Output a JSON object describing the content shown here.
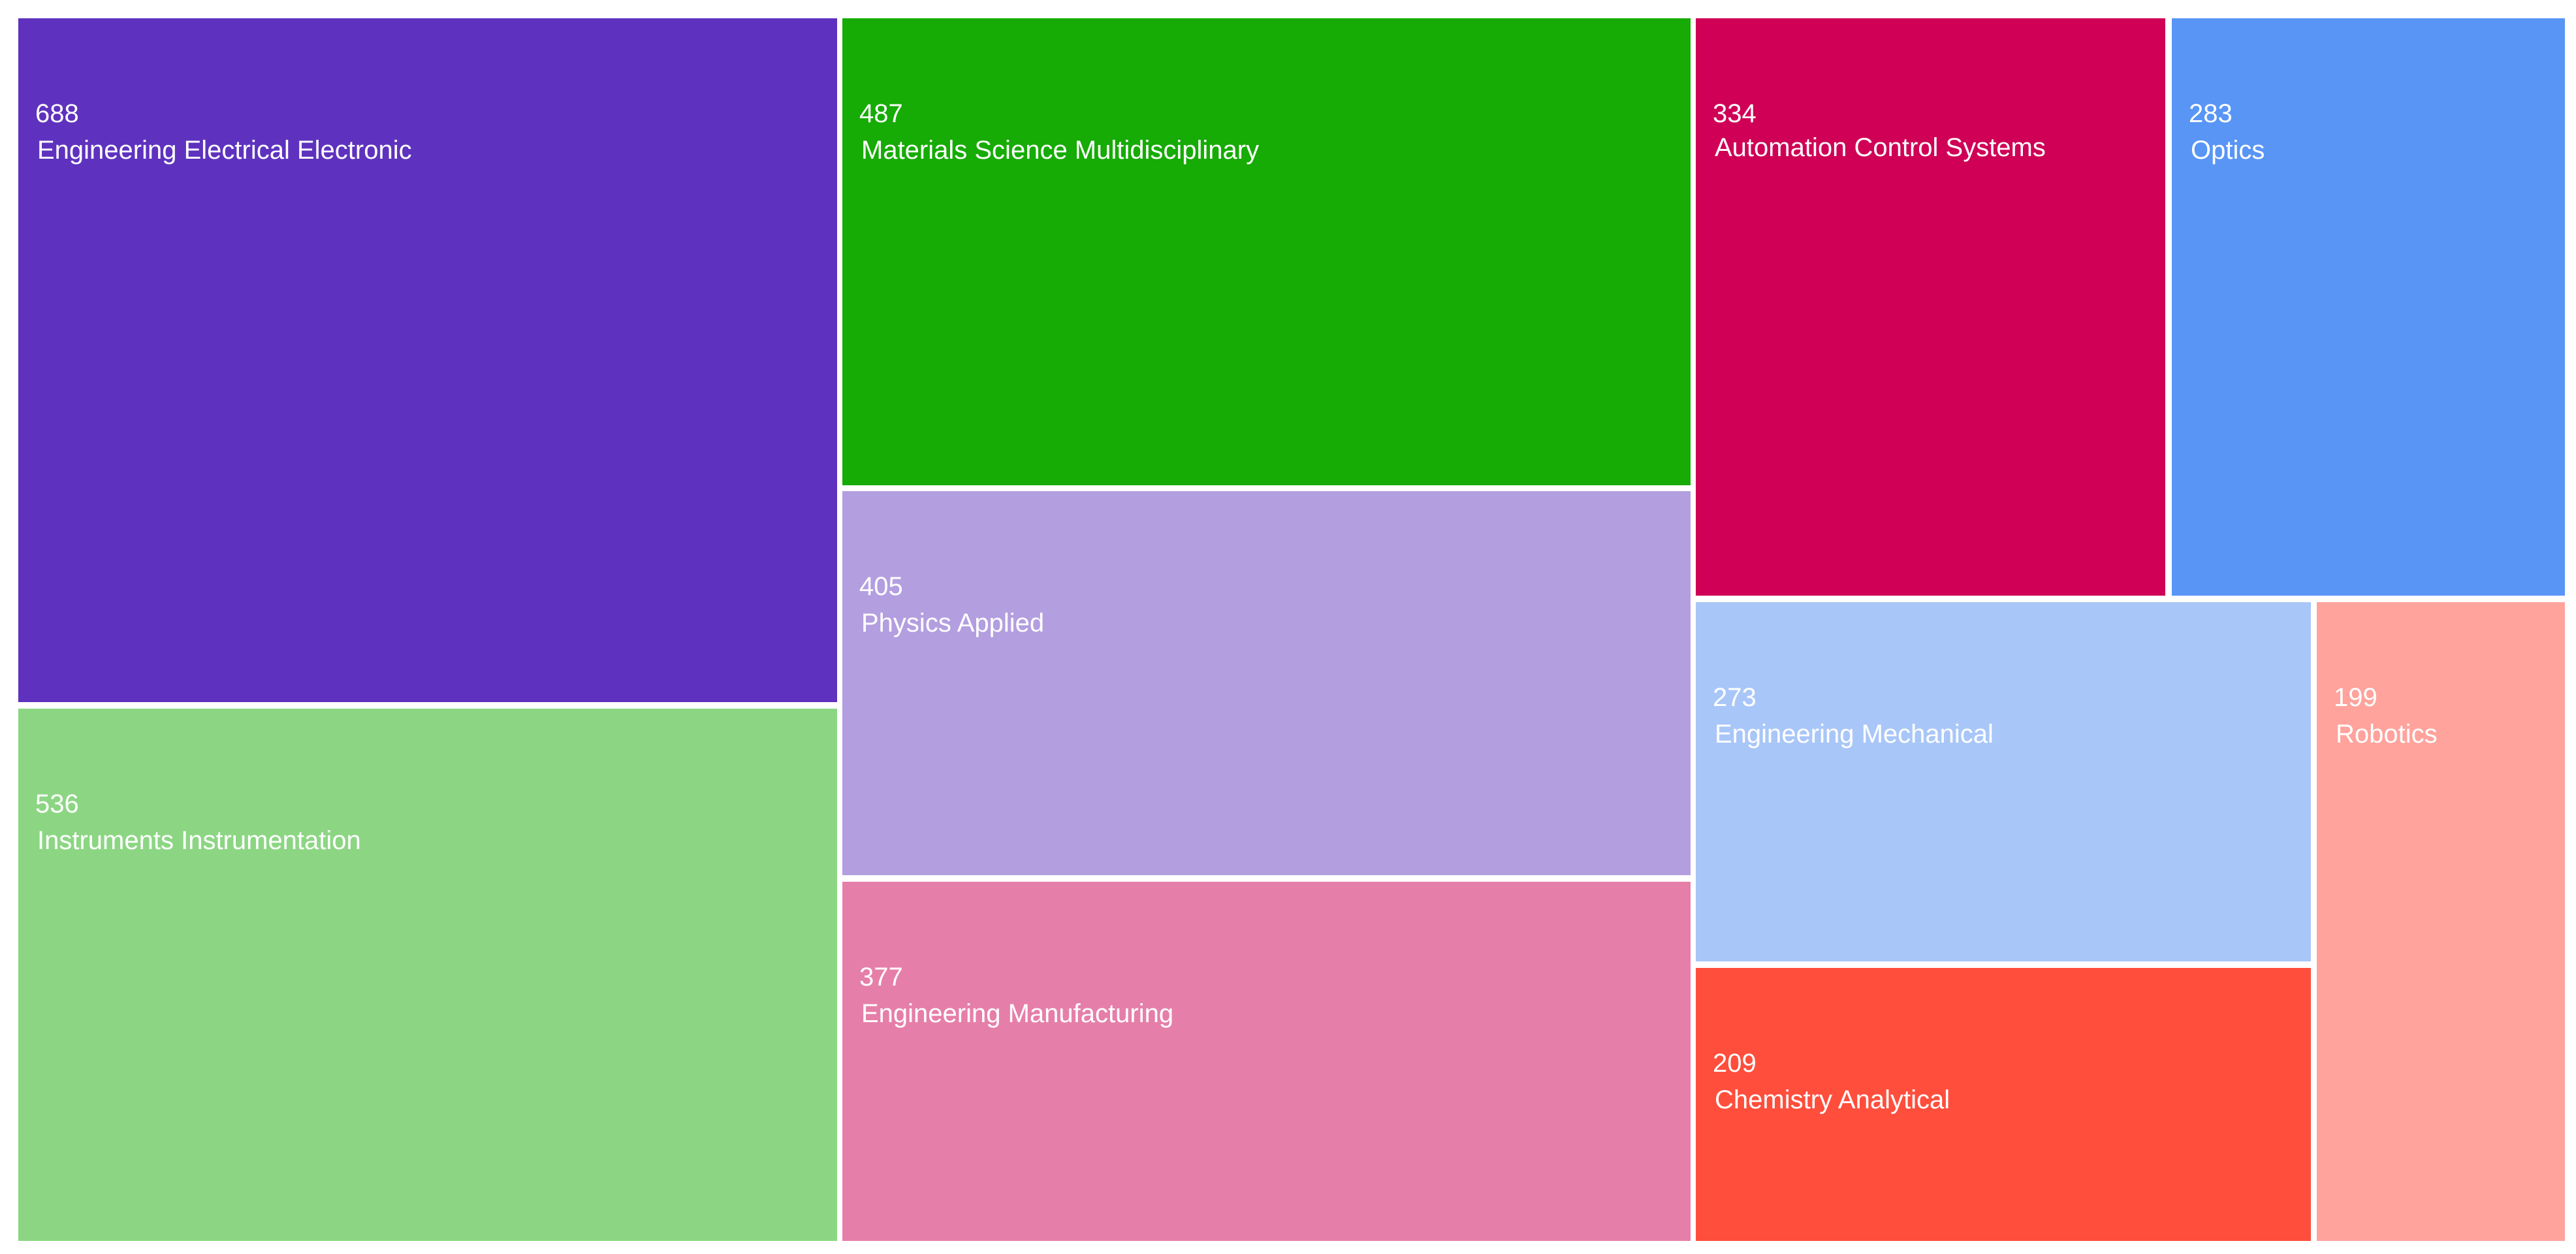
{
  "chart_data": {
    "type": "treemap",
    "title": "",
    "items": [
      {
        "label": "Engineering Electrical Electronic",
        "value": 688,
        "color": "#5e32be"
      },
      {
        "label": "Instruments Instrumentation",
        "value": 536,
        "color": "#8cd683"
      },
      {
        "label": "Materials Science Multidisciplinary",
        "value": 487,
        "color": "#16ab05"
      },
      {
        "label": "Physics Applied",
        "value": 405,
        "color": "#b39ee0"
      },
      {
        "label": "Engineering Manufacturing",
        "value": 377,
        "color": "#e57fa9"
      },
      {
        "label": "Automation Control Systems",
        "value": 334,
        "color": "#cf0056"
      },
      {
        "label": "Optics",
        "value": 283,
        "color": "#5895f5"
      },
      {
        "label": "Engineering Mechanical",
        "value": 273,
        "color": "#a9c6f8"
      },
      {
        "label": "Chemistry Analytical",
        "value": 209,
        "color": "#ff4e3c"
      },
      {
        "label": "Robotics",
        "value": 199,
        "color": "#ffa39c"
      }
    ]
  }
}
